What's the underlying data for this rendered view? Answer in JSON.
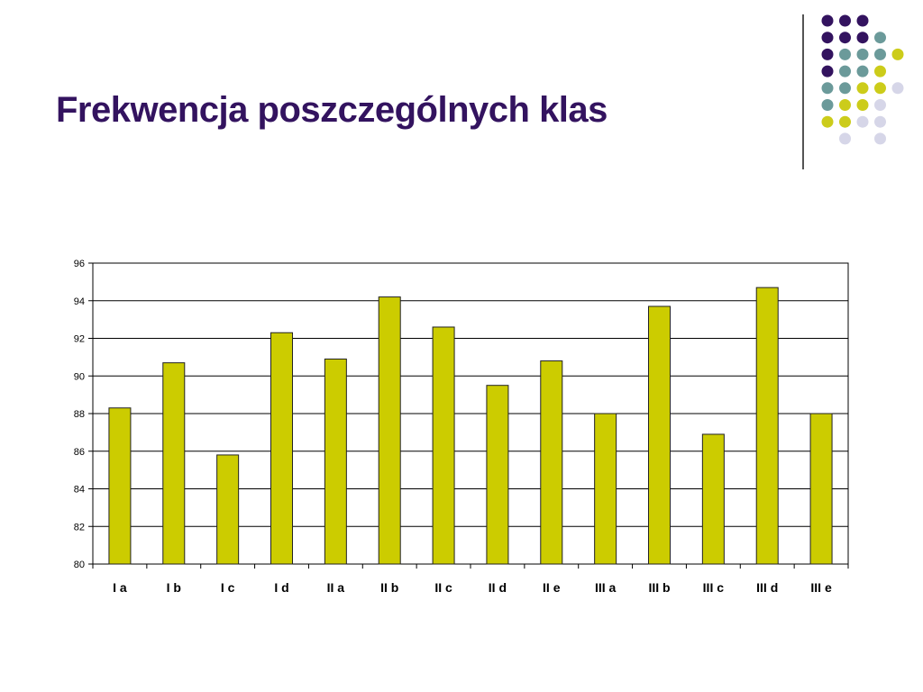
{
  "slide": {
    "title": "Frekwencja poszczególnych klas"
  },
  "colors": {
    "title": "#33135f",
    "bar_fill": "#cccc00",
    "bar_stroke": "#222222",
    "gridline": "#000000",
    "decoration": [
      "#33135f",
      "#6b9a9a",
      "#cccc1a",
      "#d6d6e8"
    ]
  },
  "decoration": {
    "dot_rows": [
      [
        0,
        0,
        0,
        null,
        null
      ],
      [
        0,
        0,
        0,
        1,
        null
      ],
      [
        0,
        1,
        1,
        1,
        2
      ],
      [
        0,
        1,
        1,
        2,
        null
      ],
      [
        1,
        1,
        2,
        2,
        3
      ],
      [
        1,
        2,
        2,
        3,
        null
      ],
      [
        2,
        2,
        3,
        3,
        null
      ],
      [
        null,
        3,
        null,
        3,
        null
      ]
    ]
  },
  "chart_data": {
    "type": "bar",
    "title": "",
    "xlabel": "",
    "ylabel": "",
    "categories": [
      "I a",
      "I b",
      "I c",
      "I d",
      "II a",
      "II b",
      "II c",
      "II d",
      "II e",
      "III a",
      "III b",
      "III c",
      "III d",
      "III e"
    ],
    "values": [
      88.3,
      90.7,
      85.8,
      92.3,
      90.9,
      94.2,
      92.6,
      89.5,
      90.8,
      88.0,
      93.7,
      86.9,
      94.7,
      88.0
    ],
    "ylim": [
      80,
      96
    ],
    "yticks": [
      "80",
      "82",
      "84",
      "86",
      "88",
      "90",
      "92",
      "94",
      "96"
    ],
    "grid": true,
    "legend": "none"
  }
}
